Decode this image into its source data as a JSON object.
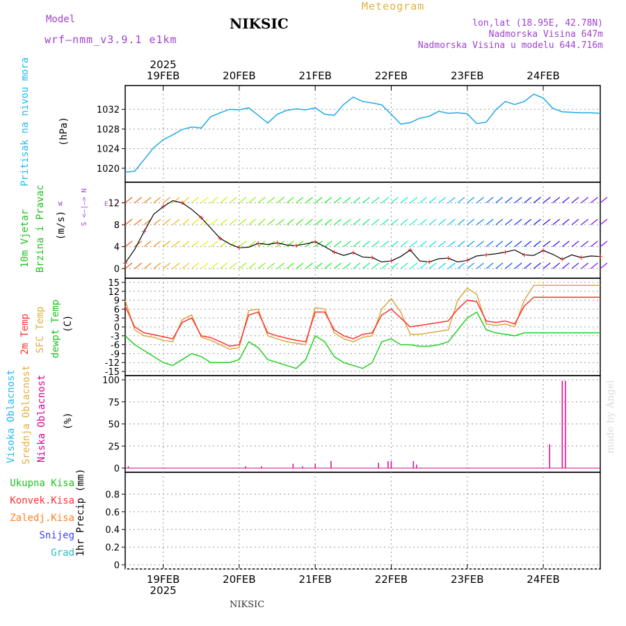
{
  "header": {
    "model_label": "Model",
    "model_version": "wrf—nmm_v3.9.1 e1km",
    "station": "NIKSIC",
    "product": "Meteogram",
    "location": "lon,lat (18.95E, 42.78N)",
    "elevation": "Nadmorska Visina 647m",
    "model_elevation": "Nadmorska Visina u modelu 644.716m"
  },
  "footer": {
    "station": "NIKSIC",
    "signature": "made by Angel"
  },
  "colors": {
    "pressure": "#1ea8e8",
    "temp2m": "#ff3030",
    "sfc": "#d8a840",
    "dewpt": "#20d020",
    "cloud_high": "#20b8f0",
    "cloud_mid": "#e0b040",
    "cloud_low": "#e00090",
    "precip_total": "#20c020",
    "precip_conv": "#ff3030",
    "precip_frz": "#ff8020",
    "precip_snow": "#4040ff",
    "precip_grad": "#20c0c0",
    "accent_purple": "#a040d0"
  },
  "time_axis": {
    "year": "2025",
    "day_labels": [
      "19FEB",
      "20FEB",
      "21FEB",
      "22FEB",
      "23FEB",
      "24FEB"
    ]
  },
  "panels": {
    "pressure": {
      "title": "Pritisak na nivou mora",
      "unit": "(hPa)"
    },
    "wind": {
      "title1": "10m Vjetar",
      "title2": "Brzina i Pravac",
      "unit": "(m/s)",
      "compass_ns": "S <—|—> N",
      "compass_w": "W",
      "compass_e": "E"
    },
    "temp": {
      "t1": "2m Temp",
      "t2": "SFC Temp",
      "t3": "dewpt Temp",
      "unit": "(C)"
    },
    "cloud": {
      "t1": "Visoka Oblacnost",
      "t2": "Srednja Oblacnost",
      "t3": "Niska Oblacnost",
      "unit": "(%)"
    },
    "precip": {
      "unit": "1hr Precip (mm)",
      "legend": [
        "Ukupna Kisa",
        "Konvek.Kisa",
        "Zaledj.Kisa",
        "Snijeg",
        "Grad"
      ]
    }
  },
  "chart_data": [
    {
      "type": "line",
      "name": "pressure",
      "ylabel": "(hPa)",
      "ylim": [
        1018,
        1036
      ],
      "yticks": [
        1020,
        1024,
        1028,
        1032
      ],
      "x_hours": [
        0,
        3,
        6,
        9,
        12,
        15,
        18,
        21,
        24,
        27,
        30,
        33,
        36,
        39,
        42,
        45,
        48,
        51,
        54,
        57,
        60,
        63,
        66,
        69,
        72,
        75,
        78,
        81,
        84,
        87,
        90,
        93,
        96,
        99,
        102,
        105,
        108,
        111,
        114,
        117,
        120,
        123,
        126,
        129,
        132,
        135,
        138,
        141,
        144,
        147,
        150
      ],
      "series": [
        {
          "name": "Pritisak na nivou mora",
          "values": [
            1019.2,
            1019.4,
            1021.8,
            1024.2,
            1025.8,
            1026.8,
            1027.9,
            1028.4,
            1028.2,
            1030.5,
            1031.3,
            1032.0,
            1031.9,
            1032.3,
            1030.8,
            1029.2,
            1031.0,
            1031.8,
            1032.1,
            1031.9,
            1032.3,
            1031.0,
            1030.8,
            1033.0,
            1034.5,
            1033.6,
            1033.3,
            1032.9,
            1031.0,
            1029.0,
            1029.3,
            1030.2,
            1030.6,
            1031.6,
            1031.2,
            1031.3,
            1031.1,
            1029.1,
            1029.4,
            1031.9,
            1033.6,
            1033.0,
            1033.6,
            1035.1,
            1034.3,
            1032.2,
            1031.5,
            1031.4,
            1031.3,
            1031.3,
            1031.2
          ]
        }
      ]
    },
    {
      "type": "line",
      "name": "wind",
      "ylabel": "(m/s)",
      "ylim": [
        -1,
        15
      ],
      "yticks": [
        0,
        4,
        8,
        12
      ],
      "x_hours": [
        0,
        3,
        6,
        9,
        12,
        15,
        18,
        21,
        24,
        27,
        30,
        33,
        36,
        39,
        42,
        45,
        48,
        51,
        54,
        57,
        60,
        63,
        66,
        69,
        72,
        75,
        78,
        81,
        84,
        87,
        90,
        93,
        96,
        99,
        102,
        105,
        108,
        111,
        114,
        117,
        120,
        123,
        126,
        129,
        132,
        135,
        138,
        141,
        144,
        147,
        150
      ],
      "series": [
        {
          "name": "wind speed",
          "values": [
            1.0,
            3.5,
            6.8,
            9.9,
            11.3,
            12.4,
            12.0,
            10.8,
            9.3,
            7.4,
            5.5,
            4.5,
            3.8,
            3.9,
            4.6,
            4.4,
            4.7,
            4.3,
            4.2,
            4.5,
            4.9,
            4.0,
            3.0,
            2.4,
            2.9,
            2.1,
            2.0,
            1.2,
            1.4,
            2.2,
            3.4,
            1.4,
            1.2,
            1.8,
            1.9,
            1.2,
            1.5,
            2.3,
            2.5,
            2.7,
            3.0,
            3.4,
            2.5,
            2.4,
            3.3,
            2.6,
            1.7,
            2.5,
            2.0,
            2.3,
            2.2
          ]
        }
      ]
    },
    {
      "type": "line",
      "name": "temperature",
      "ylabel": "(C)",
      "ylim": [
        -15,
        15
      ],
      "yticks": [
        -15,
        -12,
        -9,
        -6,
        -3,
        0,
        3,
        6,
        9,
        12,
        15
      ],
      "x_hours": [
        0,
        3,
        6,
        9,
        12,
        15,
        18,
        21,
        24,
        27,
        30,
        33,
        36,
        39,
        42,
        45,
        48,
        51,
        54,
        57,
        60,
        63,
        66,
        69,
        72,
        75,
        78,
        81,
        84,
        87,
        90,
        93,
        96,
        99,
        102,
        105,
        108,
        111,
        114,
        117,
        120,
        123,
        126,
        129,
        132,
        135,
        138,
        141,
        144,
        147,
        150
      ],
      "series": [
        {
          "name": "2m Temp",
          "values": [
            7.0,
            0.0,
            -2.0,
            -2.6,
            -3.3,
            -4.0,
            1.5,
            3.0,
            -3.0,
            -3.6,
            -5.0,
            -6.5,
            -6.0,
            4.0,
            5.0,
            -2.0,
            -3.0,
            -3.8,
            -4.5,
            -5.0,
            5.0,
            5.0,
            -1.0,
            -3.0,
            -4.0,
            -2.5,
            -2.0,
            4.0,
            6.0,
            3.0,
            0.0,
            0.5,
            1.0,
            1.5,
            2.0,
            6.0,
            9.0,
            8.5,
            2.0,
            1.5,
            2.0,
            1.0,
            7.0,
            10.0,
            10.0,
            10.0,
            10.0,
            10.0,
            10.0,
            10.0,
            10.0
          ]
        },
        {
          "name": "SFC Temp",
          "values": [
            9.0,
            -1.0,
            -3.0,
            -3.5,
            -4.5,
            -5.0,
            2.5,
            4.0,
            -3.5,
            -4.5,
            -6.0,
            -7.5,
            -7.0,
            5.5,
            6.0,
            -3.0,
            -4.0,
            -5.0,
            -5.5,
            -6.0,
            6.5,
            6.0,
            -2.0,
            -4.0,
            -5.0,
            -3.5,
            -3.0,
            6.0,
            9.5,
            5.0,
            -2.5,
            -2.5,
            -2.0,
            -1.5,
            -1.0,
            9.0,
            13.0,
            11.0,
            1.0,
            0.5,
            1.0,
            0.0,
            9.0,
            14.0,
            14.0,
            14.0,
            14.0,
            14.0,
            14.0,
            14.0,
            14.0
          ]
        },
        {
          "name": "dewpt Temp",
          "values": [
            -3.0,
            -6.0,
            -8.0,
            -10.0,
            -12.0,
            -13.0,
            -11.0,
            -9.0,
            -10.0,
            -12.0,
            -12.0,
            -12.0,
            -11.0,
            -5.0,
            -7.0,
            -11.0,
            -12.0,
            -13.0,
            -14.0,
            -11.0,
            -3.0,
            -5.0,
            -10.0,
            -12.0,
            -13.0,
            -14.0,
            -12.0,
            -5.0,
            -4.0,
            -6.0,
            -6.0,
            -6.5,
            -6.5,
            -6.0,
            -5.0,
            -1.0,
            3.0,
            5.0,
            -1.0,
            -2.0,
            -2.5,
            -3.0,
            -2.0,
            -2.0,
            -2.0,
            -2.0,
            -2.0,
            -2.0,
            -2.0,
            -2.0,
            -2.0
          ]
        }
      ]
    },
    {
      "type": "bar",
      "name": "cloud_cover",
      "ylabel": "(%)",
      "ylim": [
        0,
        100
      ],
      "yticks": [
        0,
        25,
        50,
        75,
        100
      ],
      "bars": [
        {
          "x_hours": 1,
          "value": 2
        },
        {
          "x_hours": 38,
          "value": 2
        },
        {
          "x_hours": 43,
          "value": 2
        },
        {
          "x_hours": 53,
          "value": 5
        },
        {
          "x_hours": 56,
          "value": 2
        },
        {
          "x_hours": 60,
          "value": 5
        },
        {
          "x_hours": 65,
          "value": 8
        },
        {
          "x_hours": 80,
          "value": 6
        },
        {
          "x_hours": 83,
          "value": 8
        },
        {
          "x_hours": 84,
          "value": 8
        },
        {
          "x_hours": 91,
          "value": 8
        },
        {
          "x_hours": 92,
          "value": 4
        },
        {
          "x_hours": 134,
          "value": 27
        },
        {
          "x_hours": 138,
          "value": 99
        },
        {
          "x_hours": 139,
          "value": 99
        }
      ]
    },
    {
      "type": "bar",
      "name": "precipitation",
      "ylabel": "1hr Precip (mm)",
      "ylim": [
        0,
        1.0
      ],
      "yticks": [
        0,
        0.2,
        0.4,
        0.6,
        0.8
      ],
      "bars": []
    }
  ]
}
